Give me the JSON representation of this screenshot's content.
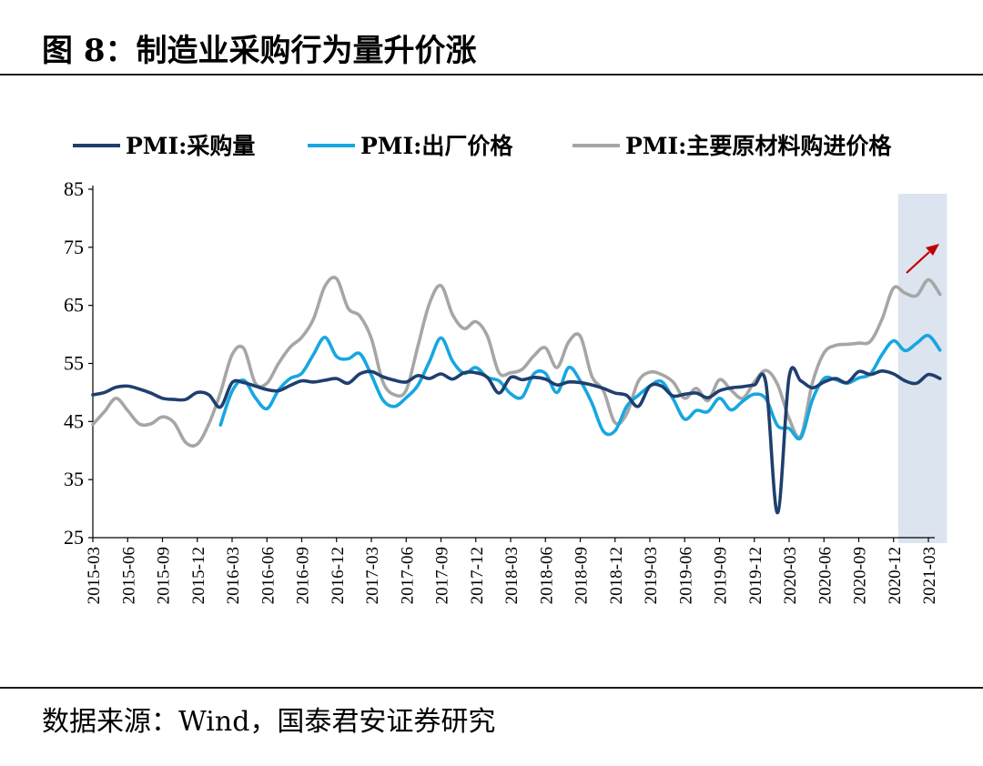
{
  "header": {
    "title": "图 8：制造业采购行为量升价涨"
  },
  "footer": {
    "source": "数据来源：Wind，国泰君安证券研究"
  },
  "colors": {
    "purchase": "#1f3f6e",
    "output_price": "#16a7e0",
    "input_price": "#a6a6a6",
    "highlight": "#dce4ef",
    "arrow": "#c00000"
  },
  "chart_data": {
    "type": "line",
    "title": "",
    "xlabel": "",
    "ylabel": "",
    "ylim": [
      25,
      85
    ],
    "yticks": [
      25,
      35,
      45,
      55,
      65,
      75,
      85
    ],
    "grid": false,
    "legend": "top",
    "x": [
      "2015-03",
      "2015-04",
      "2015-05",
      "2015-06",
      "2015-07",
      "2015-08",
      "2015-09",
      "2015-10",
      "2015-11",
      "2015-12",
      "2016-01",
      "2016-02",
      "2016-03",
      "2016-04",
      "2016-05",
      "2016-06",
      "2016-07",
      "2016-08",
      "2016-09",
      "2016-10",
      "2016-11",
      "2016-12",
      "2017-01",
      "2017-02",
      "2017-03",
      "2017-04",
      "2017-05",
      "2017-06",
      "2017-07",
      "2017-08",
      "2017-09",
      "2017-10",
      "2017-11",
      "2017-12",
      "2018-01",
      "2018-02",
      "2018-03",
      "2018-04",
      "2018-05",
      "2018-06",
      "2018-07",
      "2018-08",
      "2018-09",
      "2018-10",
      "2018-11",
      "2018-12",
      "2019-01",
      "2019-02",
      "2019-03",
      "2019-04",
      "2019-05",
      "2019-06",
      "2019-07",
      "2019-08",
      "2019-09",
      "2019-10",
      "2019-11",
      "2019-12",
      "2020-01",
      "2020-02",
      "2020-03",
      "2020-04",
      "2020-05",
      "2020-06",
      "2020-07",
      "2020-08",
      "2020-09",
      "2020-10",
      "2020-11",
      "2020-12",
      "2021-01",
      "2021-02",
      "2021-03",
      "2021-04"
    ],
    "xtick_labels": [
      "2015-03",
      "2015-06",
      "2015-09",
      "2015-12",
      "2016-03",
      "2016-06",
      "2016-09",
      "2016-12",
      "2017-03",
      "2017-06",
      "2017-09",
      "2017-12",
      "2018-03",
      "2018-06",
      "2018-09",
      "2018-12",
      "2019-03",
      "2019-06",
      "2019-09",
      "2019-12",
      "2020-03",
      "2020-06",
      "2020-09",
      "2020-12",
      "2021-03"
    ],
    "highlight_range": [
      "2021-01",
      "2021-04"
    ],
    "series": [
      {
        "name": "PMI:采购量",
        "values": [
          49.6,
          50.0,
          50.9,
          51.1,
          50.6,
          49.9,
          49.0,
          48.8,
          48.8,
          50.0,
          49.6,
          47.5,
          51.7,
          51.7,
          51.1,
          50.5,
          50.3,
          51.2,
          52.0,
          51.8,
          52.1,
          52.4,
          51.6,
          53.2,
          53.6,
          52.7,
          52.1,
          51.8,
          52.9,
          52.4,
          53.2,
          52.3,
          53.4,
          53.4,
          52.6,
          49.9,
          52.6,
          52.2,
          52.6,
          52.3,
          51.3,
          51.8,
          51.7,
          51.3,
          50.7,
          49.9,
          49.5,
          47.6,
          51.1,
          51.1,
          49.4,
          49.7,
          49.9,
          49.1,
          50.3,
          50.8,
          51.0,
          51.3,
          51.6,
          29.3,
          52.7,
          52.0,
          50.8,
          51.8,
          52.4,
          51.7,
          53.6,
          53.1,
          53.7,
          53.2,
          52.0,
          51.6,
          53.1,
          52.4
        ]
      },
      {
        "name": "PMI:出厂价格",
        "values": [
          null,
          null,
          null,
          null,
          null,
          null,
          null,
          null,
          null,
          null,
          null,
          44.4,
          50.2,
          52.1,
          49.1,
          47.2,
          50.4,
          52.4,
          53.3,
          56.5,
          59.5,
          56.2,
          55.8,
          56.7,
          53.0,
          48.7,
          47.6,
          49.1,
          51.2,
          55.3,
          59.4,
          55.4,
          53.3,
          54.3,
          52.6,
          52.0,
          49.8,
          49.2,
          53.2,
          53.3,
          50.0,
          54.3,
          52.0,
          48.2,
          43.3,
          43.4,
          47.6,
          49.5,
          51.1,
          51.9,
          48.9,
          45.4,
          46.9,
          46.7,
          49.0,
          47.0,
          48.5,
          49.7,
          48.9,
          44.3,
          43.8,
          42.2,
          48.7,
          52.4,
          52.2,
          51.6,
          52.5,
          53.2,
          56.5,
          58.9,
          57.2,
          58.5,
          59.8,
          57.3
        ]
      },
      {
        "name": "PMI:主要原材料购进价格",
        "values": [
          44.5,
          46.7,
          49.0,
          46.9,
          44.6,
          44.6,
          45.8,
          44.8,
          41.4,
          41.1,
          44.6,
          50.0,
          56.5,
          57.6,
          51.6,
          51.6,
          55.0,
          57.8,
          59.5,
          62.6,
          68.3,
          69.6,
          64.5,
          63.2,
          59.3,
          51.8,
          49.6,
          50.4,
          57.9,
          65.3,
          68.4,
          63.4,
          61.0,
          62.2,
          59.7,
          53.4,
          53.4,
          54.0,
          56.3,
          57.7,
          54.3,
          58.7,
          59.7,
          52.8,
          50.3,
          44.8,
          46.3,
          51.9,
          53.5,
          53.1,
          51.8,
          49.0,
          50.7,
          48.6,
          52.2,
          50.4,
          49.0,
          51.8,
          53.8,
          51.4,
          45.5,
          42.5,
          51.6,
          56.8,
          58.1,
          58.3,
          58.5,
          58.8,
          62.6,
          68.0,
          67.1,
          66.7,
          69.4,
          66.9
        ]
      }
    ]
  }
}
